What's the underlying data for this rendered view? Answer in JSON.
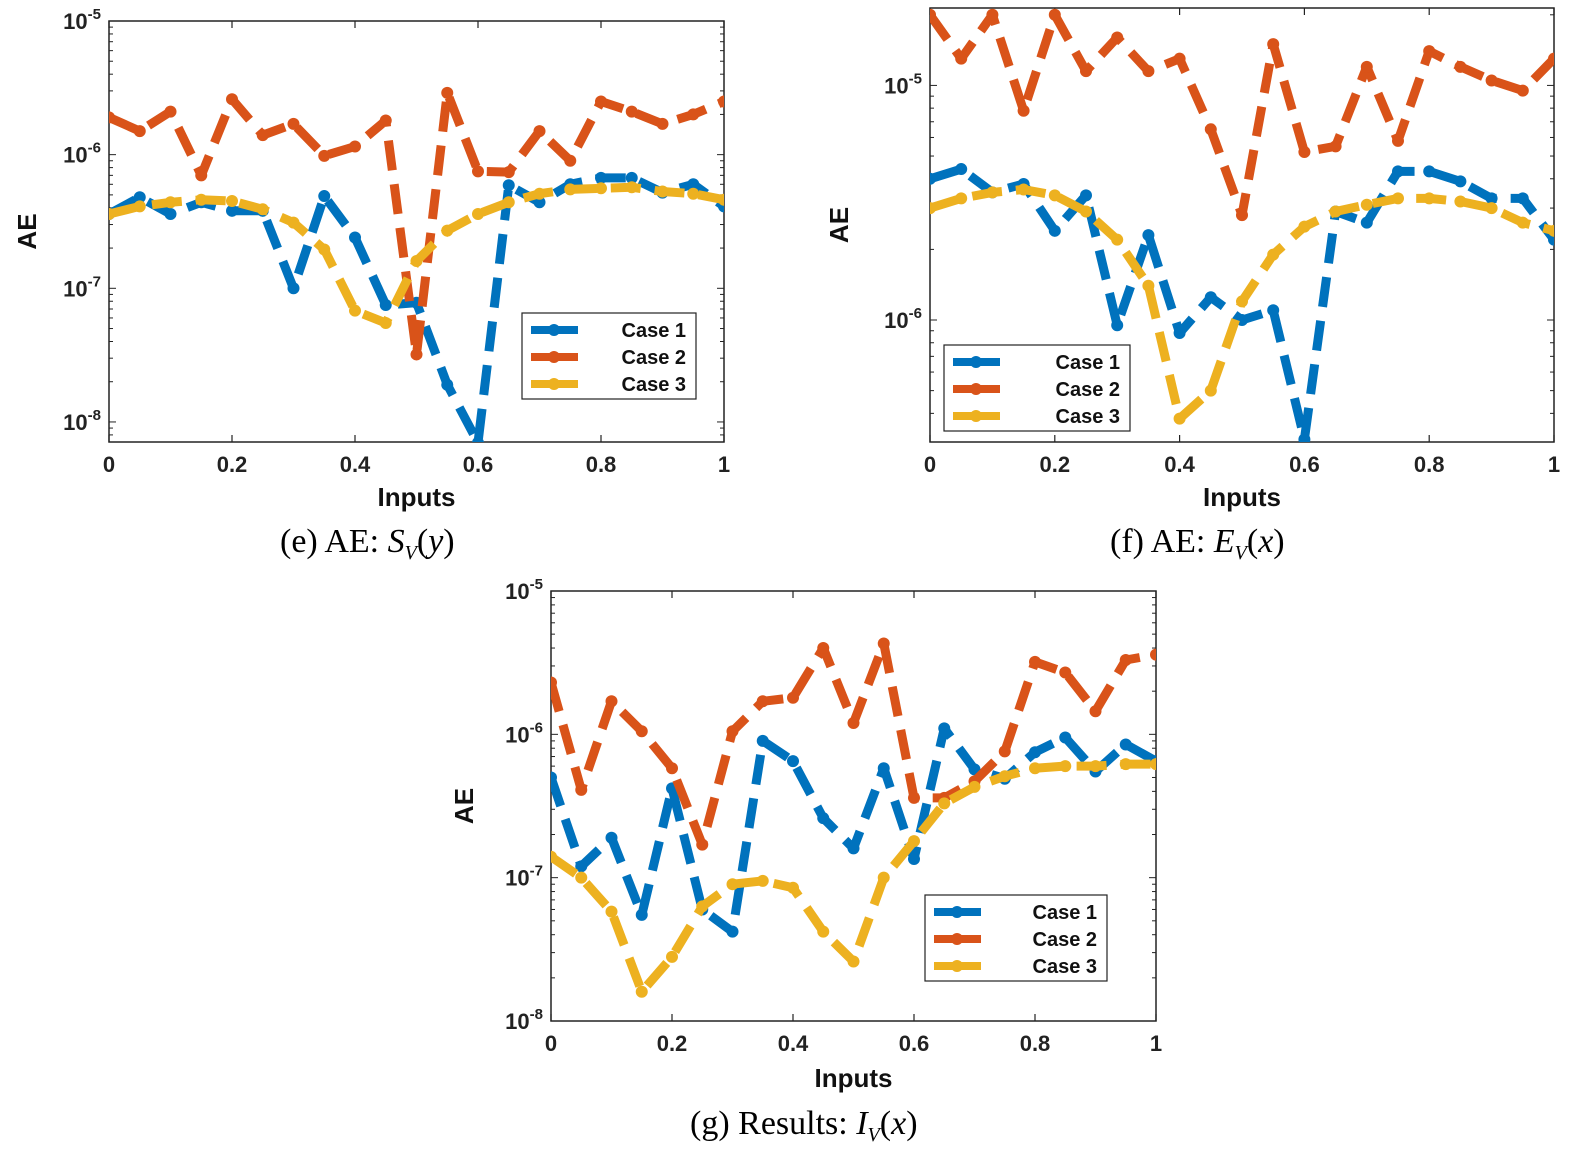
{
  "chart_data": [
    {
      "type": "line",
      "id": "e",
      "caption": {
        "prefix": "(e) AE:",
        "symbol": "S",
        "sub": "V",
        "arg": "y"
      },
      "xlabel": "Inputs",
      "ylabel": "AE",
      "scale_y": "log",
      "xlim": [
        0,
        1
      ],
      "ylim_exp": [
        -8.15,
        -5
      ],
      "xticks": [
        "0",
        "0.2",
        "0.4",
        "0.6",
        "0.8",
        "1"
      ],
      "ytick_exps": [
        -8,
        -7,
        -6,
        -5
      ],
      "legend_position": "bottom-right",
      "x": [
        0,
        0.05,
        0.1,
        0.15,
        0.2,
        0.25,
        0.3,
        0.35,
        0.4,
        0.45,
        0.5,
        0.55,
        0.6,
        0.65,
        0.7,
        0.75,
        0.8,
        0.85,
        0.9,
        0.95,
        1
      ],
      "series": [
        {
          "name": "Case 1",
          "color": "#0072BD",
          "values": [
            3.6e-07,
            4.8e-07,
            3.6e-07,
            4.4e-07,
            3.8e-07,
            3.8e-07,
            1e-07,
            4.9e-07,
            2.4e-07,
            7.5e-08,
            7.8e-08,
            1.9e-08,
            7e-09,
            5.9e-07,
            4.4e-07,
            6e-07,
            6.7e-07,
            6.7e-07,
            5.2e-07,
            6e-07,
            4.1e-07
          ]
        },
        {
          "name": "Case 2",
          "color": "#D95319",
          "values": [
            1.9e-06,
            1.5e-06,
            2.1e-06,
            7e-07,
            2.6e-06,
            1.4e-06,
            1.7e-06,
            9.8e-07,
            1.15e-06,
            1.8e-06,
            3.2e-08,
            2.9e-06,
            7.5e-07,
            7.4e-07,
            1.5e-06,
            9e-07,
            2.5e-06,
            2.1e-06,
            1.7e-06,
            2e-06,
            2.5e-06
          ]
        },
        {
          "name": "Case 3",
          "color": "#EDB120",
          "values": [
            3.6e-07,
            4.1e-07,
            4.4e-07,
            4.6e-07,
            4.5e-07,
            3.9e-07,
            3.1e-07,
            1.95e-07,
            6.8e-08,
            5.5e-08,
            1.6e-07,
            2.7e-07,
            3.6e-07,
            4.4e-07,
            5.1e-07,
            5.5e-07,
            5.6e-07,
            5.7e-07,
            5.3e-07,
            5.1e-07,
            4.6e-07
          ]
        }
      ]
    },
    {
      "type": "line",
      "id": "f",
      "caption": {
        "prefix": "(f) AE:",
        "symbol": "E",
        "sub": "V",
        "arg": "x"
      },
      "xlabel": "Inputs",
      "ylabel": "AE",
      "scale_y": "log",
      "xlim": [
        0,
        1
      ],
      "ylim_exp": [
        -6.52,
        -4.67
      ],
      "xticks": [
        "0",
        "0.2",
        "0.4",
        "0.6",
        "0.8",
        "1"
      ],
      "ytick_exps": [
        -6,
        -5
      ],
      "legend_position": "bottom-left",
      "x": [
        0,
        0.05,
        0.1,
        0.15,
        0.2,
        0.25,
        0.3,
        0.35,
        0.4,
        0.45,
        0.5,
        0.55,
        0.6,
        0.65,
        0.7,
        0.75,
        0.8,
        0.85,
        0.9,
        0.95,
        1
      ],
      "series": [
        {
          "name": "Case 1",
          "color": "#0072BD",
          "values": [
            4e-06,
            4.4e-06,
            3.5e-06,
            3.8e-06,
            2.4e-06,
            3.4e-06,
            9.5e-07,
            2.3e-06,
            8.8e-07,
            1.25e-06,
            1e-06,
            1.1e-06,
            3.1e-07,
            2.9e-06,
            2.6e-06,
            4.3e-06,
            4.3e-06,
            3.9e-06,
            3.3e-06,
            3.3e-06,
            2.2e-06
          ]
        },
        {
          "name": "Case 2",
          "color": "#D95319",
          "values": [
            2e-05,
            1.3e-05,
            2e-05,
            7.8e-06,
            2e-05,
            1.15e-05,
            1.6e-05,
            1.15e-05,
            1.3e-05,
            6.5e-06,
            2.8e-06,
            1.5e-05,
            5.2e-06,
            5.5e-06,
            1.2e-05,
            5.8e-06,
            1.4e-05,
            1.2e-05,
            1.05e-05,
            9.5e-06,
            1.3e-05
          ]
        },
        {
          "name": "Case 3",
          "color": "#EDB120",
          "values": [
            3e-06,
            3.3e-06,
            3.5e-06,
            3.6e-06,
            3.4e-06,
            2.9e-06,
            2.2e-06,
            1.4e-06,
            3.8e-07,
            5e-07,
            1.2e-06,
            1.9e-06,
            2.5e-06,
            2.9e-06,
            3.1e-06,
            3.3e-06,
            3.3e-06,
            3.2e-06,
            3e-06,
            2.6e-06,
            2.4e-06
          ]
        }
      ]
    },
    {
      "type": "line",
      "id": "g",
      "caption": {
        "prefix": "(g) Results:",
        "symbol": "I",
        "sub": "V",
        "arg": "x"
      },
      "xlabel": "Inputs",
      "ylabel": "AE",
      "scale_y": "log",
      "xlim": [
        0,
        1
      ],
      "ylim_exp": [
        -8,
        -5
      ],
      "xticks": [
        "0",
        "0.2",
        "0.4",
        "0.6",
        "0.8",
        "1"
      ],
      "ytick_exps": [
        -8,
        -7,
        -6,
        -5
      ],
      "legend_position": "bottom-right",
      "x": [
        0,
        0.05,
        0.1,
        0.15,
        0.2,
        0.25,
        0.3,
        0.35,
        0.4,
        0.45,
        0.5,
        0.55,
        0.6,
        0.65,
        0.7,
        0.75,
        0.8,
        0.85,
        0.9,
        0.95,
        1
      ],
      "series": [
        {
          "name": "Case 1",
          "color": "#0072BD",
          "values": [
            5e-07,
            1.2e-07,
            1.9e-07,
            5.5e-08,
            4.2e-07,
            6e-08,
            4.2e-08,
            9e-07,
            6.5e-07,
            2.6e-07,
            1.6e-07,
            5.8e-07,
            1.35e-07,
            1.1e-06,
            5.7e-07,
            4.9e-07,
            7.5e-07,
            9.5e-07,
            5.5e-07,
            8.5e-07,
            6.5e-07
          ]
        },
        {
          "name": "Case 2",
          "color": "#D95319",
          "values": [
            2.3e-06,
            4.1e-07,
            1.7e-06,
            1.05e-06,
            5.8e-07,
            1.7e-07,
            1.05e-06,
            1.7e-06,
            1.8e-06,
            4e-06,
            1.2e-06,
            4.3e-06,
            3.6e-07,
            3.6e-07,
            4.7e-07,
            7.6e-07,
            3.2e-06,
            2.7e-06,
            1.45e-06,
            3.3e-06,
            3.6e-06
          ]
        },
        {
          "name": "Case 3",
          "color": "#EDB120",
          "values": [
            1.4e-07,
            1e-07,
            5.8e-08,
            1.6e-08,
            2.8e-08,
            6.3e-08,
            9e-08,
            9.5e-08,
            8.5e-08,
            4.2e-08,
            2.6e-08,
            1e-07,
            1.8e-07,
            3.3e-07,
            4.3e-07,
            5.1e-07,
            5.8e-07,
            6e-07,
            6e-07,
            6.2e-07,
            6.2e-07
          ]
        }
      ]
    }
  ]
}
